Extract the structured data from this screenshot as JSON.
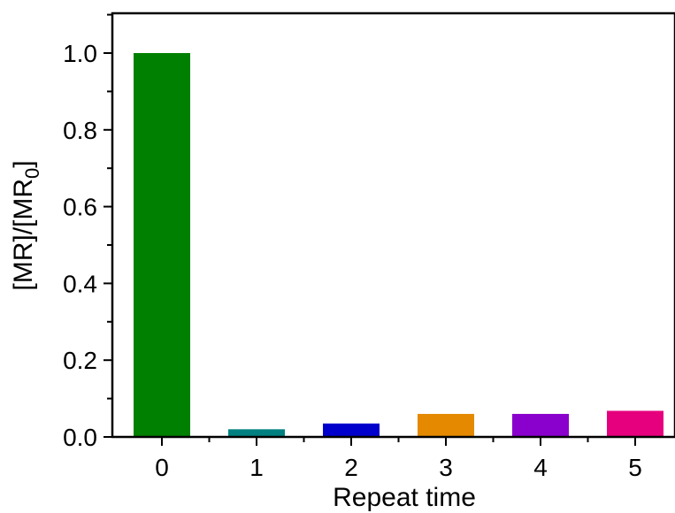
{
  "chart_data": {
    "type": "bar",
    "categories": [
      "0",
      "1",
      "2",
      "3",
      "4",
      "5"
    ],
    "values": [
      1.0,
      0.02,
      0.035,
      0.06,
      0.06,
      0.068
    ],
    "colors": [
      "#008000",
      "#008080",
      "#0000cc",
      "#e58a00",
      "#8a00cc",
      "#e6007e"
    ],
    "xlabel": "Repeat time",
    "ylabel_main": "[MR]/[MR",
    "ylabel_sub": "0",
    "ylabel_close": "]",
    "ylim": [
      0,
      1.1
    ],
    "yticks": [
      "0.0",
      "0.2",
      "0.4",
      "0.6",
      "0.8",
      "1.0"
    ],
    "ytick_values": [
      0,
      0.2,
      0.4,
      0.6,
      0.8,
      1.0
    ],
    "grid": false,
    "legend": "none"
  }
}
